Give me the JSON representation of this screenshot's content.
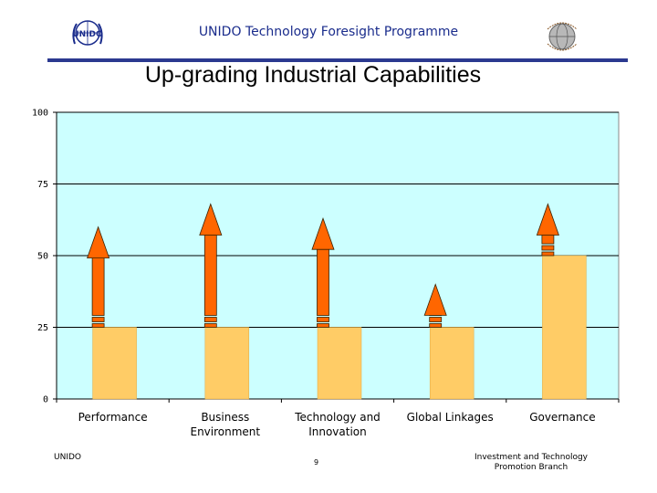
{
  "header": {
    "title": "UNIDO Technology Foresight Programme",
    "logo_text": "UNIDO"
  },
  "slide": {
    "title": "Up-grading Industrial Capabilities"
  },
  "chart_data": {
    "type": "bar",
    "categories": [
      [
        "Performance"
      ],
      [
        "Business",
        "Environment"
      ],
      [
        "Technology and",
        "Innovation"
      ],
      [
        "Global Linkages"
      ],
      [
        "Governance"
      ]
    ],
    "values": [
      25,
      25,
      25,
      25,
      50
    ],
    "arrow_targets": [
      60,
      68,
      63,
      40,
      68
    ],
    "ylim": [
      0,
      100
    ],
    "yticks": [
      0,
      25,
      50,
      75,
      100
    ],
    "grid": true,
    "colors": {
      "plot_bg": "#ccffff",
      "bar": "#ffcc66",
      "arrow": "#ff6600",
      "arrow_outline": "#3a2200"
    }
  },
  "footer": {
    "left": "UNIDO",
    "page": "9",
    "right": [
      "Investment and Technology",
      "Promotion Branch"
    ]
  }
}
